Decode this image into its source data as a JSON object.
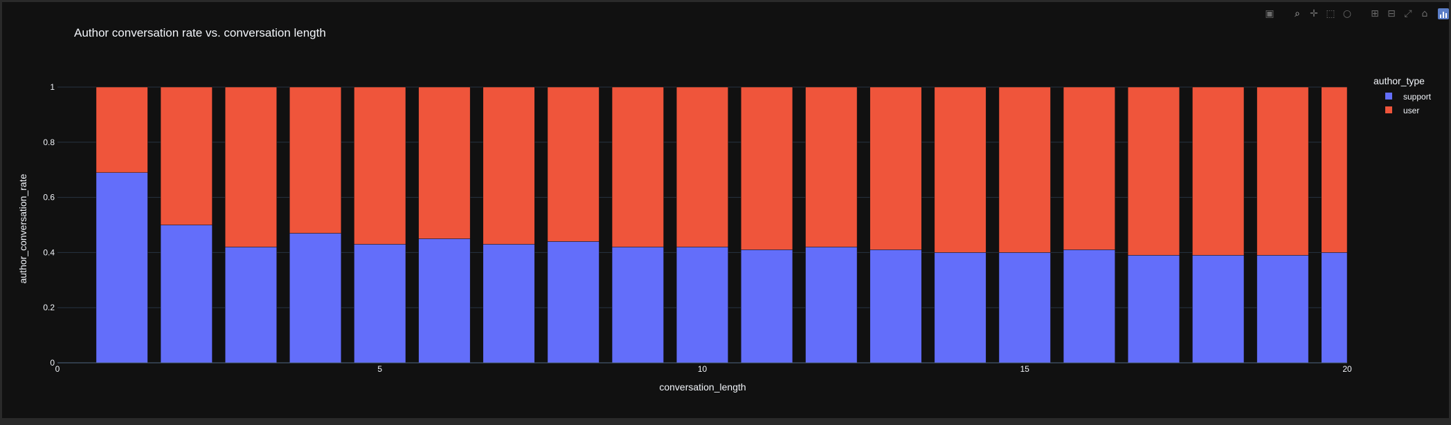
{
  "modebar": {
    "icons": [
      "camera-icon",
      "zoom-icon",
      "pan-icon",
      "box-select-icon",
      "lasso-icon",
      "zoom-in-icon",
      "zoom-out-icon",
      "autoscale-icon",
      "reset-axes-icon",
      "plotly-logo-icon"
    ]
  },
  "colors": {
    "background": "#111111",
    "grid": "#283442",
    "support": "#636efa",
    "user": "#ef553b",
    "text": "#f2f5fa"
  },
  "chart_data": {
    "type": "bar",
    "barmode": "stack",
    "title": "Author conversation rate vs. conversation length",
    "xlabel": "conversation_length",
    "ylabel": "author_conversation_rate",
    "xlim": [
      0,
      20
    ],
    "ylim": [
      0,
      1
    ],
    "xticks": [
      "0",
      "5",
      "10",
      "15",
      "20"
    ],
    "yticks": [
      "0",
      "0.2",
      "0.4",
      "0.6",
      "0.8",
      "1"
    ],
    "x": [
      1,
      2,
      3,
      4,
      5,
      6,
      7,
      8,
      9,
      10,
      11,
      12,
      13,
      14,
      15,
      16,
      17,
      18,
      19,
      20
    ],
    "legend_title": "author_type",
    "legend_position": "top-right, outside",
    "series": [
      {
        "name": "support",
        "color": "#636efa",
        "values": [
          0.69,
          0.5,
          0.42,
          0.47,
          0.43,
          0.45,
          0.43,
          0.44,
          0.42,
          0.42,
          0.41,
          0.42,
          0.41,
          0.4,
          0.4,
          0.41,
          0.39,
          0.39,
          0.39,
          0.4
        ]
      },
      {
        "name": "user",
        "color": "#ef553b",
        "values": [
          0.31,
          0.5,
          0.58,
          0.53,
          0.57,
          0.55,
          0.57,
          0.56,
          0.58,
          0.58,
          0.59,
          0.58,
          0.59,
          0.6,
          0.6,
          0.59,
          0.61,
          0.61,
          0.61,
          0.6
        ]
      }
    ]
  }
}
